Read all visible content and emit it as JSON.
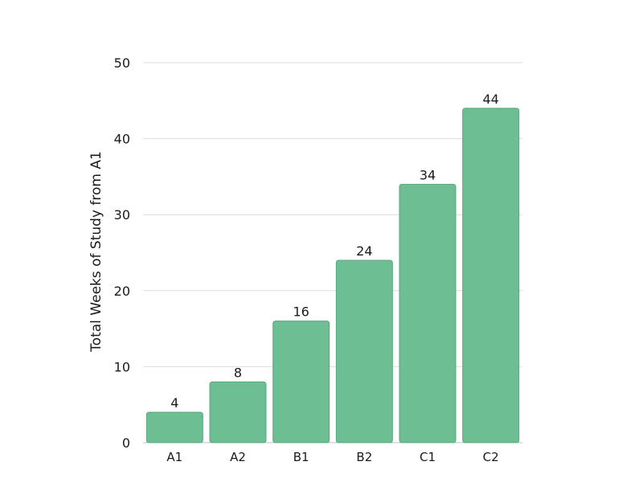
{
  "chart_data": {
    "type": "bar",
    "title": "",
    "xlabel": "",
    "ylabel": "Total Weeks of Study from A1",
    "categories": [
      "A1",
      "A2",
      "B1",
      "B2",
      "C1",
      "C2"
    ],
    "values": [
      4,
      8,
      16,
      24,
      34,
      44
    ],
    "data_labels": [
      "4",
      "8",
      "16",
      "24",
      "34",
      "44"
    ],
    "ylim": [
      0,
      50
    ],
    "yticks": [
      0,
      10,
      20,
      30,
      40,
      50
    ],
    "ytick_labels": [
      "0",
      "10",
      "20",
      "30",
      "40",
      "50"
    ],
    "grid": true,
    "legend": "none",
    "colors": {
      "bar_fill": "#6dbe92",
      "bar_stroke": "#5aa87e"
    }
  }
}
